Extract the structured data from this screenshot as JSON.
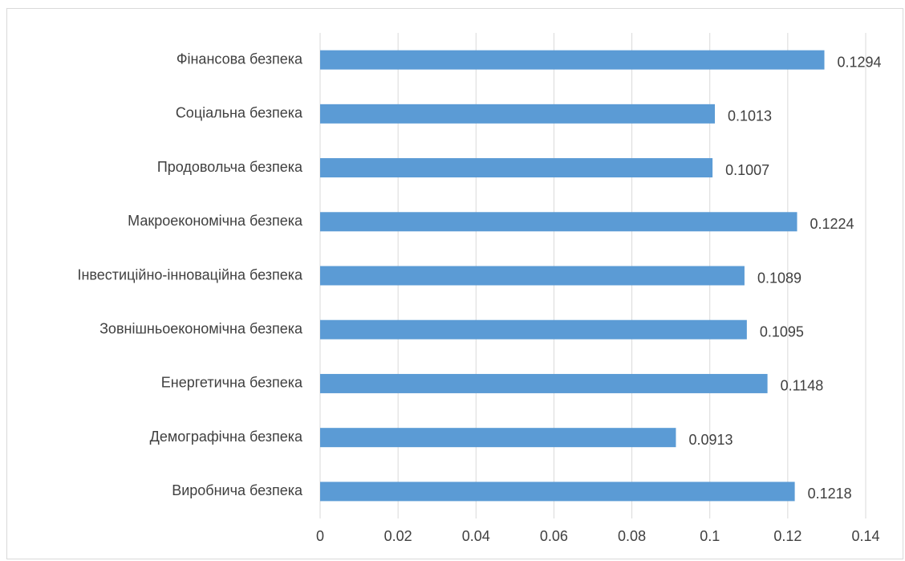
{
  "chart_data": {
    "type": "bar",
    "orientation": "horizontal",
    "title": "",
    "xlabel": "",
    "ylabel": "",
    "categories": [
      "Виробнича безпека",
      "Демографічна безпека",
      "Енергетична безпека",
      "Зовнішньоекономічна безпека",
      "Інвестиційно-інноваційна безпека",
      "Макроекономічна безпека",
      "Продовольча безпека",
      "Соціальна безпека",
      "Фінансова безпека"
    ],
    "values": [
      0.1218,
      0.0913,
      0.1148,
      0.1095,
      0.1089,
      0.1224,
      0.1007,
      0.1013,
      0.1294
    ],
    "value_labels": [
      "0.1218",
      "0.0913",
      "0.1148",
      "0.1095",
      "0.1089",
      "0.1224",
      "0.1007",
      "0.1013",
      "0.1294"
    ],
    "xlim": [
      0,
      0.14
    ],
    "x_ticks": [
      0,
      0.02,
      0.04,
      0.06,
      0.08,
      0.1,
      0.12,
      0.14
    ],
    "x_tick_labels": [
      "0",
      "0.02",
      "0.04",
      "0.06",
      "0.08",
      "0.1",
      "0.12",
      "0.14"
    ],
    "grid": "vertical",
    "legend": "none",
    "bar_color": "#5b9bd5",
    "grid_color": "#d9d9d9",
    "text_color": "#404040"
  }
}
